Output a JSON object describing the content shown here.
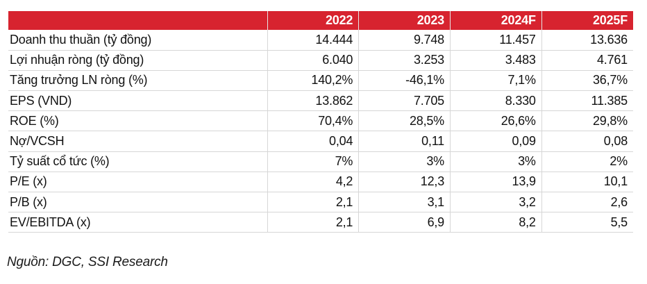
{
  "table": {
    "columns": [
      "",
      "2022",
      "2023",
      "2024F",
      "2025F"
    ],
    "rows": [
      {
        "label": "Doanh thu thuần (tỷ đồng)",
        "values": [
          "14.444",
          "9.748",
          "11.457",
          "13.636"
        ]
      },
      {
        "label": "Lợi nhuận ròng (tỷ đồng)",
        "values": [
          "6.040",
          "3.253",
          "3.483",
          "4.761"
        ]
      },
      {
        "label": "Tăng trưởng LN ròng (%)",
        "values": [
          "140,2%",
          "-46,1%",
          "7,1%",
          "36,7%"
        ]
      },
      {
        "label": "EPS (VND)",
        "values": [
          "13.862",
          "7.705",
          "8.330",
          "11.385"
        ]
      },
      {
        "label": "ROE (%)",
        "values": [
          "70,4%",
          "28,5%",
          "26,6%",
          "29,8%"
        ]
      },
      {
        "label": "Nợ/VCSH",
        "values": [
          "0,04",
          "0,11",
          "0,09",
          "0,08"
        ]
      },
      {
        "label": "Tỷ suất cổ tức (%)",
        "values": [
          "7%",
          "3%",
          "3%",
          "2%"
        ]
      },
      {
        "label": "P/E (x)",
        "values": [
          "4,2",
          "12,3",
          "13,9",
          "10,1"
        ]
      },
      {
        "label": "P/B (x)",
        "values": [
          "2,1",
          "3,1",
          "3,2",
          "2,6"
        ]
      },
      {
        "label": "EV/EBITDA (x)",
        "values": [
          "2,1",
          "6,9",
          "8,2",
          "5,5"
        ]
      }
    ]
  },
  "source": "Nguồn: DGC, SSI Research",
  "colors": {
    "header_bg": "#d7232f",
    "header_text": "#ffffff",
    "row_border": "#d6d6d6"
  }
}
